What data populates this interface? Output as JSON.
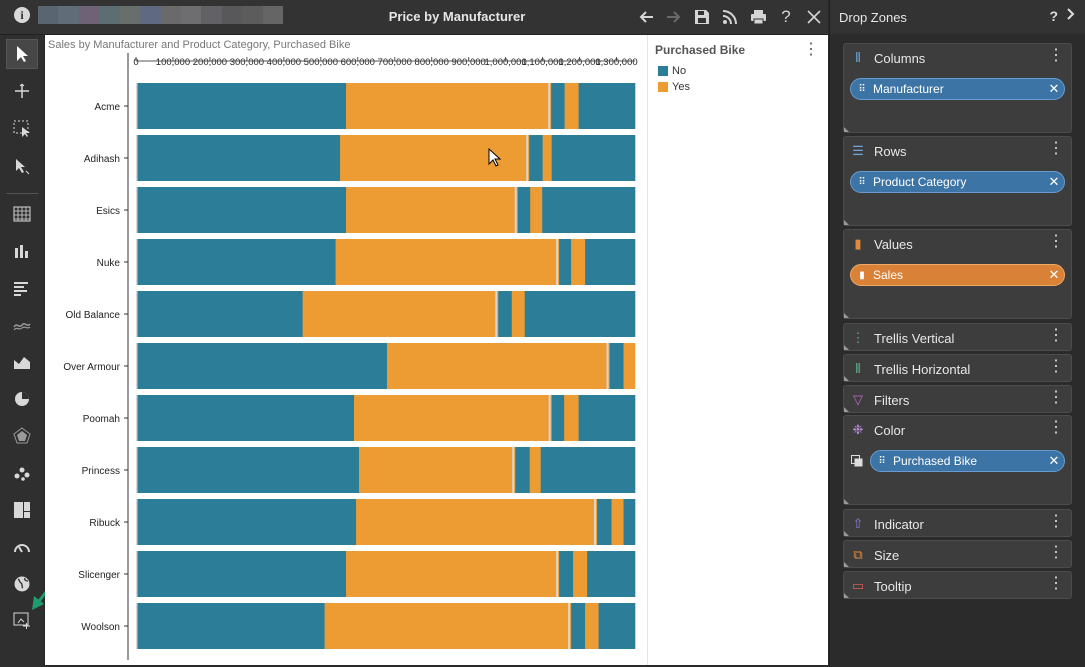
{
  "window": {
    "title": "Price by Manufacturer",
    "info_glyph": "i",
    "icons": [
      "back-arrow-icon",
      "forward-arrow-icon",
      "save-icon",
      "rss-icon",
      "print-icon",
      "help-icon",
      "close-icon"
    ],
    "help_glyph": "?"
  },
  "toolbar": {
    "tools": [
      "pointer-icon",
      "pan-icon",
      "marquee-select-icon",
      "select-cursor-icon",
      "pivot-table-icon",
      "column-chart-icon",
      "bar-chart-icon",
      "line-chart-icon",
      "area-chart-icon",
      "pie-chart-icon",
      "radar-chart-icon",
      "scatter-chart-icon",
      "treemap-icon",
      "gauge-icon",
      "map-icon",
      "custom-visual-icon"
    ],
    "active_tool": "pointer-icon"
  },
  "chart": {
    "subtitle": "Sales by Manufacturer and Product Category, Purchased Bike"
  },
  "chart_data": {
    "type": "bar",
    "orientation": "horizontal",
    "stacked": true,
    "title": "Sales by Manufacturer and Product Category, Purchased Bike",
    "xlim": [
      0,
      1350000
    ],
    "x_ticks": [
      "0",
      "100,000",
      "200,000",
      "300,000",
      "400,000",
      "500,000",
      "600,000",
      "700,000",
      "800,000",
      "900,000",
      "1,000,000",
      "1,100,000",
      "1,200,000",
      "1,300,000"
    ],
    "categories": [
      "Acme",
      "Adihash",
      "Esics",
      "Nuke",
      "Old Balance",
      "Over Armour",
      "Poomah",
      "Princess",
      "Ribuck",
      "Slicenger",
      "Woolson"
    ],
    "segment_colors": [
      "#d6d6d6",
      "#2c7d98",
      "#ed9b33",
      "#d6d6d6",
      "#ed9b33",
      "#2c7d98",
      "#ed9b33",
      "#2c7d98"
    ],
    "rows": [
      [
        0.003,
        0.418,
        0.405,
        0.004,
        0.002,
        0.027,
        0.028,
        0.113
      ],
      [
        0.003,
        0.406,
        0.373,
        0.004,
        0.002,
        0.027,
        0.018,
        0.167
      ],
      [
        0.003,
        0.418,
        0.338,
        0.004,
        0.002,
        0.025,
        0.024,
        0.186
      ],
      [
        0.003,
        0.397,
        0.442,
        0.004,
        0.002,
        0.024,
        0.028,
        0.1
      ],
      [
        0.003,
        0.331,
        0.386,
        0.004,
        0.002,
        0.027,
        0.026,
        0.221
      ],
      [
        0.003,
        0.5,
        0.44,
        0.004,
        0.002,
        0.028,
        0.023,
        0.0
      ],
      [
        0.003,
        0.434,
        0.39,
        0.004,
        0.002,
        0.025,
        0.029,
        0.113
      ],
      [
        0.003,
        0.444,
        0.307,
        0.004,
        0.002,
        0.029,
        0.022,
        0.189
      ],
      [
        0.003,
        0.438,
        0.477,
        0.004,
        0.002,
        0.029,
        0.024,
        0.023
      ],
      [
        0.003,
        0.418,
        0.421,
        0.004,
        0.002,
        0.028,
        0.028,
        0.096
      ],
      [
        0.003,
        0.375,
        0.488,
        0.004,
        0.002,
        0.028,
        0.027,
        0.073
      ]
    ],
    "legend_title": "Purchased Bike",
    "legend": [
      {
        "label": "No",
        "color": "#2c7d98"
      },
      {
        "label": "Yes",
        "color": "#ed9b33"
      }
    ]
  },
  "drop_zones": {
    "title": "Drop Zones",
    "help_glyph": "?",
    "chevron_icon": "chevron-right-icon",
    "zones": [
      {
        "name": "columns",
        "label": "Columns",
        "icon": "columns-icon",
        "glyph": "⦀",
        "icon_color": "#6fa8dc",
        "pill": "Manufacturer",
        "pill_color": "#3d74a6"
      },
      {
        "name": "rows",
        "label": "Rows",
        "icon": "rows-icon",
        "glyph": "☰",
        "icon_color": "#6fa8dc",
        "pill": "Product Category",
        "pill_color": "#3d74a6"
      },
      {
        "name": "values",
        "label": "Values",
        "icon": "values-icon",
        "glyph": "▮",
        "icon_color": "#e08a3c",
        "pill": "Sales",
        "pill_color": "#d98136"
      },
      {
        "name": "trellis-vertical",
        "label": "Trellis Vertical",
        "icon": "trellis-vertical-icon",
        "glyph": "⋮",
        "icon_color": "#5fb58a",
        "pill": null
      },
      {
        "name": "trellis-horizontal",
        "label": "Trellis Horizontal",
        "icon": "trellis-horizontal-icon",
        "glyph": "⦀",
        "icon_color": "#5fb58a",
        "pill": null
      },
      {
        "name": "filters",
        "label": "Filters",
        "icon": "filter-icon",
        "glyph": "▽",
        "icon_color": "#c069c9",
        "pill": null
      },
      {
        "name": "color",
        "label": "Color",
        "icon": "color-palette-icon",
        "glyph": "❉",
        "icon_color": "#b58ad6",
        "pill": "Purchased Bike",
        "pill_color": "#3d74a6"
      },
      {
        "name": "indicator",
        "label": "Indicator",
        "icon": "indicator-icon",
        "glyph": "⇧",
        "icon_color": "#8a7fd6",
        "pill": null
      },
      {
        "name": "size",
        "label": "Size",
        "icon": "size-icon",
        "glyph": "⧉",
        "icon_color": "#e08a3c",
        "pill": null
      },
      {
        "name": "tooltip",
        "label": "Tooltip",
        "icon": "tooltip-icon",
        "glyph": "▭",
        "icon_color": "#e05c5c",
        "pill": null
      }
    ]
  }
}
